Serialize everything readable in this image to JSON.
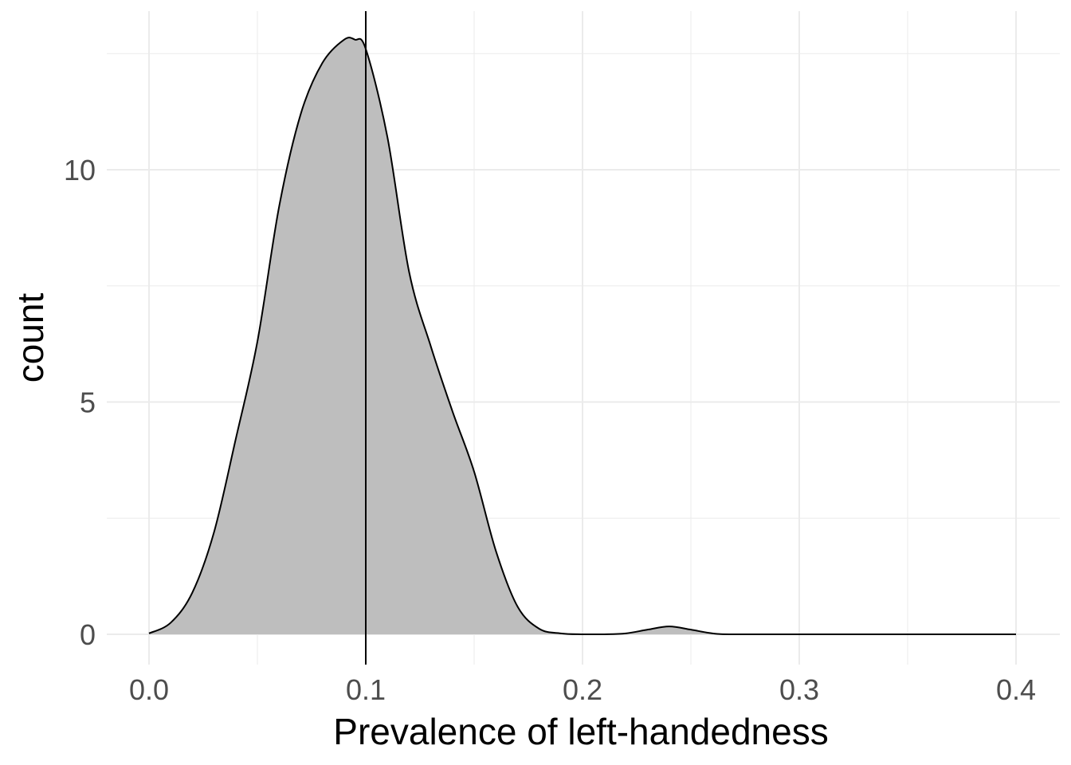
{
  "chart_data": {
    "type": "area",
    "title": "",
    "xlabel": "Prevalence of left-handedness",
    "ylabel": "count",
    "xlim": [
      0.0,
      0.4
    ],
    "ylim": [
      -0.6,
      13.3
    ],
    "x_ticks": [
      0.0,
      0.1,
      0.2,
      0.3,
      0.4
    ],
    "x_tick_labels": [
      "0.0",
      "0.1",
      "0.2",
      "0.3",
      "0.4"
    ],
    "y_ticks": [
      0,
      5,
      10
    ],
    "y_tick_labels": [
      "0",
      "5",
      "10"
    ],
    "grid": true,
    "legend": "none",
    "fill_color": "#bebebe",
    "line_color": "#000000",
    "reference_line": {
      "x": 0.1,
      "color": "#000000"
    },
    "series": [
      {
        "x": [
          0.0,
          0.01,
          0.02,
          0.03,
          0.04,
          0.05,
          0.06,
          0.07,
          0.08,
          0.09,
          0.095,
          0.1,
          0.11,
          0.12,
          0.13,
          0.14,
          0.15,
          0.16,
          0.17,
          0.18,
          0.19,
          0.2,
          0.21,
          0.22,
          0.23,
          0.24,
          0.25,
          0.26,
          0.27,
          0.3,
          0.35,
          0.4
        ],
        "y": [
          0.02,
          0.25,
          0.9,
          2.2,
          4.2,
          6.3,
          9.2,
          11.2,
          12.3,
          12.8,
          12.8,
          12.6,
          10.7,
          7.8,
          6.2,
          4.8,
          3.5,
          1.8,
          0.6,
          0.12,
          0.02,
          0.0,
          0.0,
          0.02,
          0.1,
          0.17,
          0.1,
          0.02,
          0.0,
          0.0,
          0.0,
          0.0
        ]
      }
    ]
  }
}
